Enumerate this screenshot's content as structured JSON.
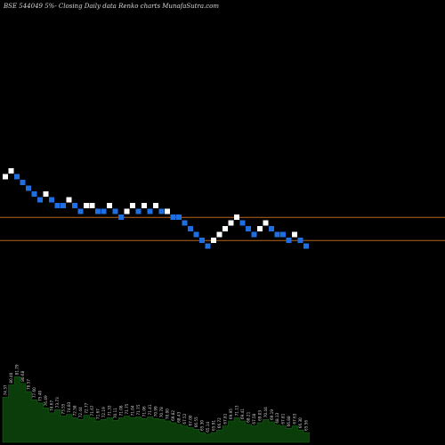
{
  "chart_data": {
    "type": "renko",
    "title": "BSE 544049 5%-  Closing Daily data  Renko  charts MunafaSutra.com",
    "colors": {
      "background": "#000000",
      "up_brick": "#ffffff",
      "down_brick": "#1f6fe0",
      "level_line": "#b5651d",
      "volume_area": "#0b3d0b",
      "volume_label": "#d0d0d0"
    },
    "bricks": [
      {
        "i": 0,
        "level": 12,
        "dir": "up"
      },
      {
        "i": 1,
        "level": 13,
        "dir": "up"
      },
      {
        "i": 2,
        "level": 12,
        "dir": "down"
      },
      {
        "i": 3,
        "level": 11,
        "dir": "down"
      },
      {
        "i": 4,
        "level": 10,
        "dir": "down"
      },
      {
        "i": 5,
        "level": 9,
        "dir": "down"
      },
      {
        "i": 6,
        "level": 8,
        "dir": "down"
      },
      {
        "i": 7,
        "level": 9,
        "dir": "up"
      },
      {
        "i": 8,
        "level": 8,
        "dir": "down"
      },
      {
        "i": 9,
        "level": 7,
        "dir": "down"
      },
      {
        "i": 10,
        "level": 7,
        "dir": "down"
      },
      {
        "i": 11,
        "level": 8,
        "dir": "up"
      },
      {
        "i": 12,
        "level": 7,
        "dir": "down"
      },
      {
        "i": 13,
        "level": 6,
        "dir": "down"
      },
      {
        "i": 14,
        "level": 7,
        "dir": "up"
      },
      {
        "i": 15,
        "level": 7,
        "dir": "up"
      },
      {
        "i": 16,
        "level": 6,
        "dir": "down"
      },
      {
        "i": 17,
        "level": 6,
        "dir": "down"
      },
      {
        "i": 18,
        "level": 7,
        "dir": "up"
      },
      {
        "i": 19,
        "level": 6,
        "dir": "down"
      },
      {
        "i": 20,
        "level": 5,
        "dir": "down"
      },
      {
        "i": 21,
        "level": 6,
        "dir": "up"
      },
      {
        "i": 22,
        "level": 7,
        "dir": "up"
      },
      {
        "i": 23,
        "level": 6,
        "dir": "down"
      },
      {
        "i": 24,
        "level": 7,
        "dir": "up"
      },
      {
        "i": 25,
        "level": 6,
        "dir": "down"
      },
      {
        "i": 26,
        "level": 7,
        "dir": "up"
      },
      {
        "i": 27,
        "level": 6,
        "dir": "down"
      },
      {
        "i": 28,
        "level": 6,
        "dir": "up"
      },
      {
        "i": 29,
        "level": 5,
        "dir": "down"
      },
      {
        "i": 30,
        "level": 5,
        "dir": "down"
      },
      {
        "i": 31,
        "level": 4,
        "dir": "down"
      },
      {
        "i": 32,
        "level": 3,
        "dir": "down"
      },
      {
        "i": 33,
        "level": 2,
        "dir": "down"
      },
      {
        "i": 34,
        "level": 1,
        "dir": "down"
      },
      {
        "i": 35,
        "level": 0,
        "dir": "down"
      },
      {
        "i": 36,
        "level": 1,
        "dir": "up"
      },
      {
        "i": 37,
        "level": 2,
        "dir": "up"
      },
      {
        "i": 38,
        "level": 3,
        "dir": "up"
      },
      {
        "i": 39,
        "level": 4,
        "dir": "up"
      },
      {
        "i": 40,
        "level": 5,
        "dir": "up"
      },
      {
        "i": 41,
        "level": 4,
        "dir": "down"
      },
      {
        "i": 42,
        "level": 3,
        "dir": "down"
      },
      {
        "i": 43,
        "level": 2,
        "dir": "down"
      },
      {
        "i": 44,
        "level": 3,
        "dir": "up"
      },
      {
        "i": 45,
        "level": 4,
        "dir": "up"
      },
      {
        "i": 46,
        "level": 3,
        "dir": "down"
      },
      {
        "i": 47,
        "level": 2,
        "dir": "down"
      },
      {
        "i": 48,
        "level": 2,
        "dir": "down"
      },
      {
        "i": 49,
        "level": 1,
        "dir": "down"
      },
      {
        "i": 50,
        "level": 2,
        "dir": "up"
      },
      {
        "i": 51,
        "level": 1,
        "dir": "down"
      },
      {
        "i": 52,
        "level": 0,
        "dir": "down"
      }
    ],
    "level_lines": [
      5.5,
      1.5
    ],
    "volume": [
      {
        "v": 0.55,
        "label": "74.37"
      },
      {
        "v": 0.7,
        "label": "80.40"
      },
      {
        "v": 0.8,
        "label": "81.79"
      },
      {
        "v": 0.72,
        "label": "80.68"
      },
      {
        "v": 0.62,
        "label": "78.57"
      },
      {
        "v": 0.52,
        "label": "77.60"
      },
      {
        "v": 0.48,
        "label": "75.40"
      },
      {
        "v": 0.42,
        "label": "76.49"
      },
      {
        "v": 0.36,
        "label": "74.67"
      },
      {
        "v": 0.4,
        "label": "73.73"
      },
      {
        "v": 0.32,
        "label": "73.55"
      },
      {
        "v": 0.34,
        "label": "74.83"
      },
      {
        "v": 0.3,
        "label": "72.58"
      },
      {
        "v": 0.28,
        "label": "72.44"
      },
      {
        "v": 0.33,
        "label": "72.77"
      },
      {
        "v": 0.3,
        "label": "71.67"
      },
      {
        "v": 0.26,
        "label": "71.67"
      },
      {
        "v": 0.28,
        "label": "72.19"
      },
      {
        "v": 0.3,
        "label": "71.33"
      },
      {
        "v": 0.27,
        "label": "70.11"
      },
      {
        "v": 0.3,
        "label": "71.08"
      },
      {
        "v": 0.32,
        "label": "71.75"
      },
      {
        "v": 0.3,
        "label": "71.04"
      },
      {
        "v": 0.31,
        "label": "71.75"
      },
      {
        "v": 0.29,
        "label": "71.06"
      },
      {
        "v": 0.31,
        "label": "71.41"
      },
      {
        "v": 0.29,
        "label": "70.99"
      },
      {
        "v": 0.28,
        "label": "70.78"
      },
      {
        "v": 0.26,
        "label": "70.00"
      },
      {
        "v": 0.24,
        "label": "69.82"
      },
      {
        "v": 0.22,
        "label": "68.43"
      },
      {
        "v": 0.2,
        "label": "67.52"
      },
      {
        "v": 0.18,
        "label": "67.00"
      },
      {
        "v": 0.16,
        "label": "66.55"
      },
      {
        "v": 0.12,
        "label": "65.30"
      },
      {
        "v": 0.1,
        "label": "65.14"
      },
      {
        "v": 0.12,
        "label": "65.91"
      },
      {
        "v": 0.15,
        "label": "66.72"
      },
      {
        "v": 0.2,
        "label": "67.81"
      },
      {
        "v": 0.26,
        "label": "69.95"
      },
      {
        "v": 0.3,
        "label": "71.13"
      },
      {
        "v": 0.26,
        "label": "69.41"
      },
      {
        "v": 0.22,
        "label": "68.21"
      },
      {
        "v": 0.2,
        "label": "67.58"
      },
      {
        "v": 0.24,
        "label": "69.03"
      },
      {
        "v": 0.28,
        "label": "70.44"
      },
      {
        "v": 0.25,
        "label": "69.19"
      },
      {
        "v": 0.21,
        "label": "68.13"
      },
      {
        "v": 0.2,
        "label": "67.81"
      },
      {
        "v": 0.17,
        "label": "66.88"
      },
      {
        "v": 0.2,
        "label": "67.63"
      },
      {
        "v": 0.15,
        "label": "66.30"
      },
      {
        "v": 0.12,
        "label": "65.56"
      }
    ]
  }
}
